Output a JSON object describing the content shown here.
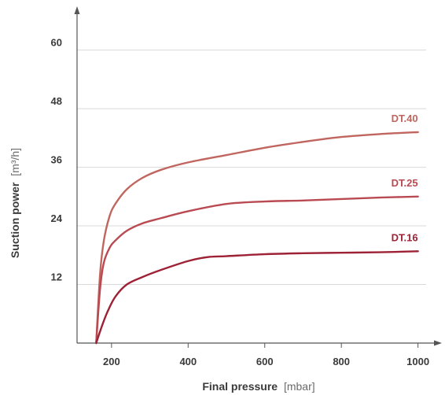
{
  "chart_data": {
    "type": "line",
    "xlabel": {
      "text": "Final pressure",
      "unit": "[mbar]"
    },
    "ylabel": {
      "text": "Suction power",
      "unit": "[m³/h]"
    },
    "xlim": [
      110,
      1050
    ],
    "ylim": [
      0,
      68
    ],
    "x_ticks": [
      200,
      400,
      600,
      800,
      1000
    ],
    "y_ticks": [
      12,
      24,
      36,
      48,
      60
    ],
    "grid": "horizontal",
    "colors": {
      "axis": "#555555",
      "grid": "#d9d9d9"
    },
    "series": [
      {
        "name": "DT.40",
        "color": "#c0665f",
        "x": [
          160,
          170,
          180,
          195,
          210,
          240,
          280,
          330,
          400,
          500,
          600,
          700,
          800,
          900,
          1000
        ],
        "y": [
          0,
          14,
          21,
          26,
          28.5,
          31.5,
          33.8,
          35.5,
          37,
          38.5,
          40,
          41.2,
          42.2,
          42.8,
          43.2
        ]
      },
      {
        "name": "DT.25",
        "color": "#b94a52",
        "x": [
          160,
          170,
          180,
          195,
          210,
          240,
          280,
          330,
          400,
          500,
          600,
          700,
          800,
          900,
          1000
        ],
        "y": [
          0,
          11,
          16.5,
          19.5,
          21,
          23,
          24.5,
          25.6,
          27,
          28.5,
          29,
          29.2,
          29.5,
          29.8,
          30
        ]
      },
      {
        "name": "DT.16",
        "color": "#9e2236",
        "x": [
          160,
          175,
          190,
          210,
          240,
          280,
          330,
          400,
          450,
          500,
          600,
          700,
          800,
          900,
          1000
        ],
        "y": [
          0,
          3.5,
          6.5,
          9.5,
          12,
          13.5,
          15,
          16.8,
          17.6,
          17.8,
          18.2,
          18.4,
          18.5,
          18.6,
          18.8
        ]
      }
    ]
  }
}
